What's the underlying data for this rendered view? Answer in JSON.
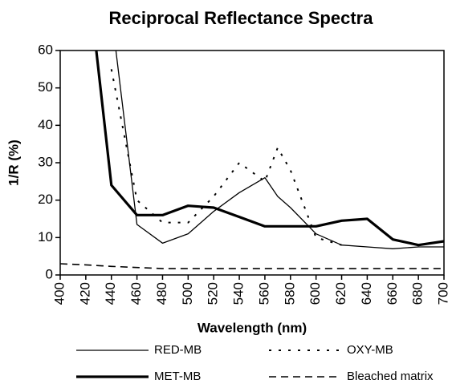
{
  "chart_data": {
    "type": "line",
    "title": "Reciprocal Reflectance Spectra",
    "x_label": "Wavelength (nm)",
    "y_label": "1/R (%)",
    "x": [
      400,
      420,
      440,
      460,
      480,
      500,
      520,
      540,
      560,
      570,
      580,
      600,
      620,
      640,
      660,
      680,
      700
    ],
    "series": [
      {
        "name": "RED-MB",
        "color": "#000000",
        "values": [
          null,
          null,
          70,
          13.5,
          8.5,
          11,
          17,
          22,
          26,
          21,
          18,
          11,
          8,
          7.5,
          7,
          7.5,
          7.5
        ]
      },
      {
        "name": "OXY-MB",
        "color": "#000000",
        "values": [
          null,
          null,
          55,
          20,
          14,
          14,
          21,
          30,
          25,
          34,
          28,
          10,
          8,
          null,
          null,
          null,
          null
        ]
      },
      {
        "name": "MET-MB",
        "color": "#000000",
        "values": [
          null,
          85,
          24,
          16,
          16,
          18.5,
          18,
          15.5,
          13,
          13,
          13,
          13,
          14.5,
          15,
          9.5,
          8,
          9
        ]
      },
      {
        "name": "Bleached matrix",
        "color": "#000000",
        "values": [
          3,
          2.7,
          2.3,
          2,
          1.7,
          1.7,
          1.7,
          1.7,
          1.7,
          1.7,
          1.7,
          1.7,
          1.7,
          1.7,
          1.7,
          1.7,
          1.7
        ]
      }
    ],
    "xlim": [
      400,
      700
    ],
    "xticks": [
      400,
      420,
      440,
      460,
      480,
      500,
      520,
      540,
      560,
      580,
      600,
      620,
      640,
      660,
      680,
      700
    ],
    "ylim": [
      0,
      60
    ],
    "yticks": [
      0,
      10,
      20,
      30,
      40,
      50,
      60
    ]
  }
}
